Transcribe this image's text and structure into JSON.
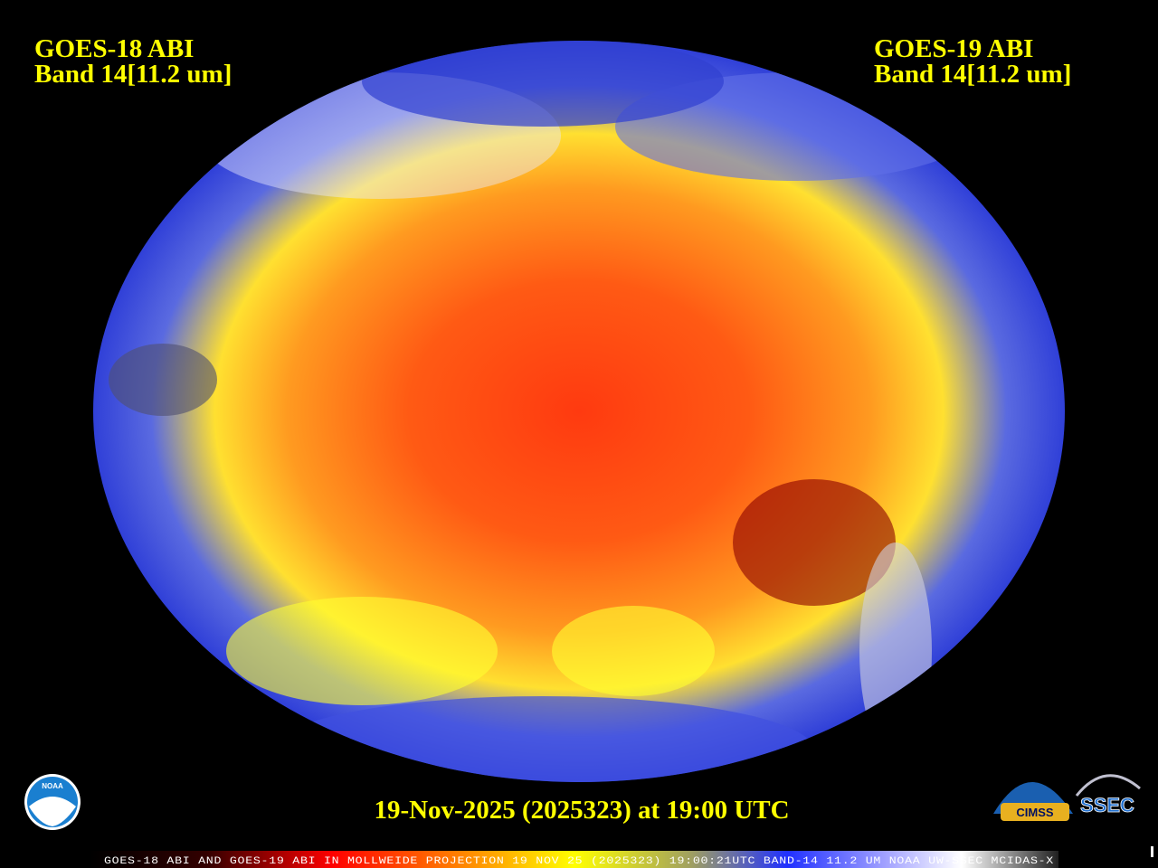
{
  "header": {
    "left": {
      "title": "GOES-18 ABI",
      "band": "Band 14[11.2 um]"
    },
    "right": {
      "title": "GOES-19 ABI",
      "band": "Band 14[11.2 um]"
    }
  },
  "timestamp": "19-Nov-2025 (2025323) at 19:00 UTC",
  "footer": "GOES-18 ABI AND GOES-19 ABI IN MOLLWEIDE PROJECTION 19 NOV 25 (2025323) 19:00:21UTC BAND-14 11.2 UM NOAA UW-SSEC MCIDAS-X",
  "logos": {
    "noaa": "NOAA",
    "cimss": "CIMSS",
    "ssec": "SSEC"
  }
}
